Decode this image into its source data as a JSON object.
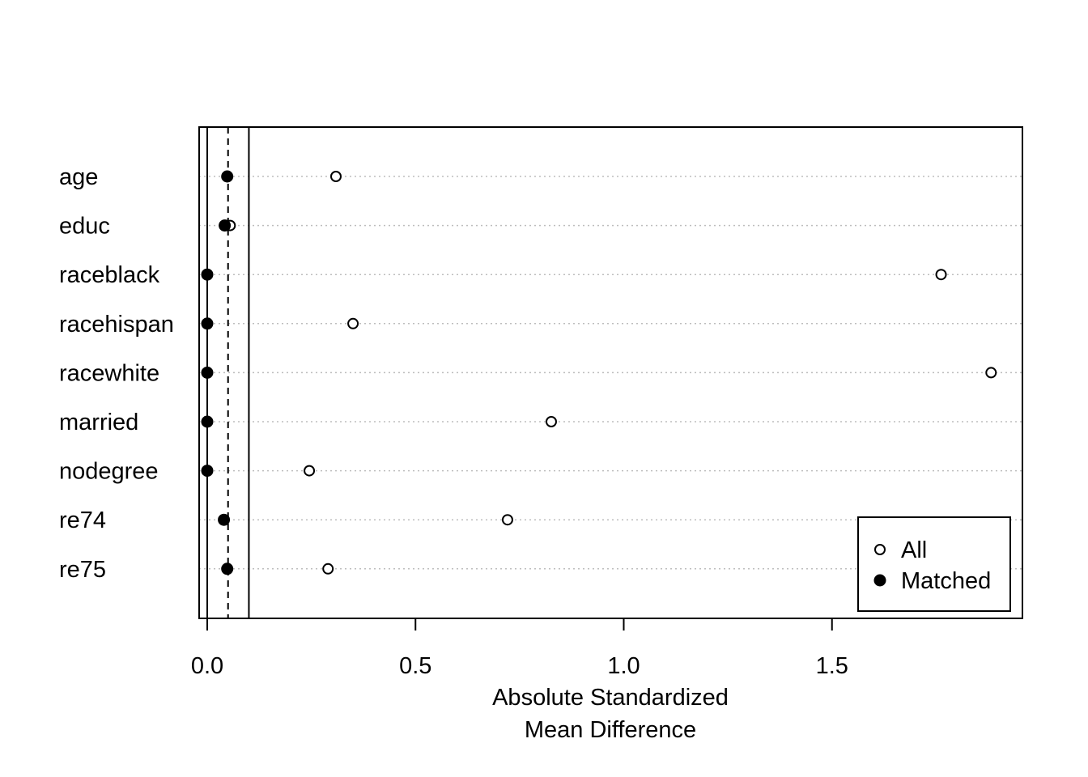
{
  "chart_data": {
    "type": "scatter",
    "title": "",
    "xlabel": [
      "Absolute Standardized",
      "Mean Difference"
    ],
    "ylabel": "",
    "xlim": [
      -0.02,
      1.96
    ],
    "xticks": [
      {
        "value": 0.0,
        "label": "0.0"
      },
      {
        "value": 0.5,
        "label": "0.5"
      },
      {
        "value": 1.0,
        "label": "1.0"
      },
      {
        "value": 1.5,
        "label": "1.5"
      }
    ],
    "categories": [
      "age",
      "educ",
      "raceblack",
      "racehispan",
      "racewhite",
      "married",
      "nodegree",
      "re74",
      "re75"
    ],
    "series": [
      {
        "name": "All",
        "marker": "open-circle",
        "values": [
          0.309,
          0.055,
          1.762,
          0.35,
          1.882,
          0.826,
          0.245,
          0.721,
          0.29
        ]
      },
      {
        "name": "Matched",
        "marker": "filled-circle",
        "values": [
          0.048,
          0.042,
          0.0,
          0.0,
          0.0,
          0.0,
          0.0,
          0.04,
          0.048
        ]
      }
    ],
    "reference_lines": [
      {
        "value": 0.0,
        "style": "solid"
      },
      {
        "value": 0.05,
        "style": "dashed"
      },
      {
        "value": 0.1,
        "style": "solid"
      }
    ],
    "grid": "horizontal dotted",
    "legend": {
      "position": "bottom-right",
      "entries": [
        "All",
        "Matched"
      ]
    }
  }
}
